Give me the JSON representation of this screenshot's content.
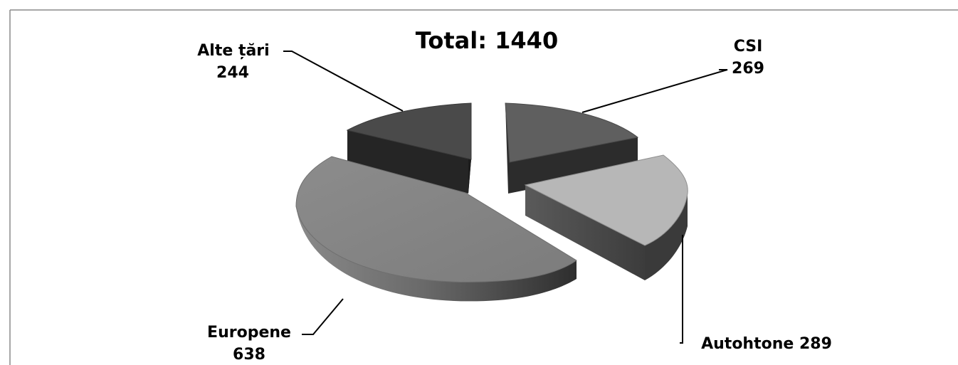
{
  "chart_data": {
    "type": "pie",
    "title": "Total: 1440",
    "categories": [
      "CSI",
      "Autohtone",
      "Europene",
      "Alte țări"
    ],
    "values": [
      269,
      289,
      638,
      244
    ],
    "labels": {
      "csi_name": "CSI",
      "csi_value": "269",
      "autohtone": "Autohtone 289",
      "europene_name": "Europene",
      "europene_value": "638",
      "alte_name": "Alte țări",
      "alte_value": "244"
    },
    "exploded": true,
    "three_d": true,
    "legend": "none",
    "colors": {
      "csi": "#5f5f5f",
      "autohtone": "#b7b7b7",
      "europene": "#878787",
      "alte": "#4a4a4a"
    }
  }
}
